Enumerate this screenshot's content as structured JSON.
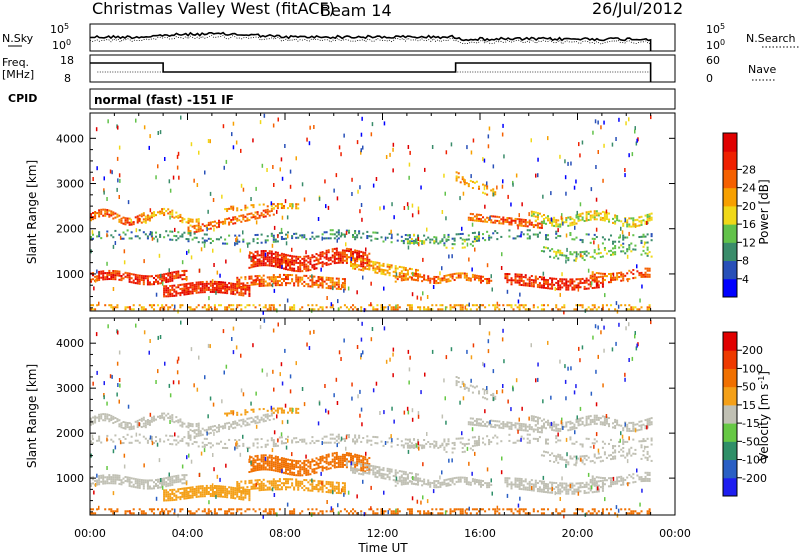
{
  "header": {
    "station": "Christmas Valley West (fitACF)",
    "beam": "Beam 14",
    "date": "26/Jul/2012"
  },
  "strip_labels": {
    "nsky": "N.Sky",
    "nsky_hi": "10^5",
    "nsky_lo": "10^0",
    "nsky_r_hi": "10^5",
    "nsky_r_lo": "10^0",
    "nsearch": "N.Search",
    "freq_top": "Freq.",
    "freq_unit": "[MHz]",
    "freq_18": "18",
    "freq_8": "8",
    "nave_60": "60",
    "nave_0": "0",
    "nave": "Nave",
    "cpid": "CPID",
    "cpid_text": "normal (fast) -151 IF"
  },
  "colors": {
    "power": [
      "#0000ff",
      "#2850b8",
      "#3a8c6a",
      "#62c24a",
      "#f0d818",
      "#f7a000",
      "#f56000",
      "#ef2000",
      "#e00000"
    ],
    "velocity": [
      "#1e1ef0",
      "#2a5fc4",
      "#2f8f68",
      "#66c844",
      "#c0c0b4",
      "#f4a018",
      "#f07000",
      "#ee3a00",
      "#e00000"
    ]
  },
  "chart_data": [
    {
      "type": "heatmap",
      "name": "power-panel",
      "ylabel": "Slant Range [km]",
      "ylim": [
        180,
        4560
      ],
      "yticks": [
        "1000",
        "2000",
        "3000",
        "4000"
      ],
      "xlim": [
        0,
        24
      ],
      "colorbar": {
        "label": "Power [dB]",
        "ticks": [
          "4",
          "8",
          "12",
          "16",
          "20",
          "24",
          "28"
        ]
      }
    },
    {
      "type": "heatmap",
      "name": "velocity-panel",
      "ylabel": "Slant Range [km]",
      "ylim": [
        180,
        4560
      ],
      "yticks": [
        "1000",
        "2000",
        "3000",
        "4000"
      ],
      "xlim": [
        0,
        24
      ],
      "xticks": [
        "00:00",
        "04:00",
        "08:00",
        "12:00",
        "16:00",
        "20:00",
        "00:00"
      ],
      "xlabel": "Time UT",
      "colorbar": {
        "label": "Velocity [m s^-1]",
        "ticks": [
          "200",
          "100",
          "50",
          "15",
          "-15",
          "-50",
          "-100",
          "-200"
        ]
      }
    }
  ]
}
